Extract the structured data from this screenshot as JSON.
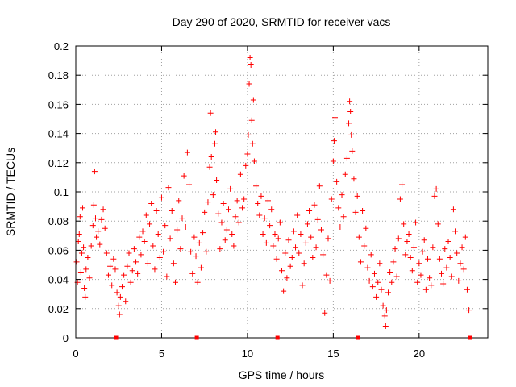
{
  "chart_data": {
    "type": "scatter",
    "title": "Day 290 of 2020, SRMTID for receiver vacs",
    "xlabel": "GPS time / hours",
    "ylabel": "SRMTID / TECUs",
    "xlim": [
      0,
      24
    ],
    "ylim": [
      0,
      0.2
    ],
    "x_ticks": [
      0,
      5,
      10,
      15,
      20
    ],
    "x_tick_labels": [
      "0",
      "5",
      "10",
      "15",
      "20"
    ],
    "y_ticks": [
      0,
      0.02,
      0.04,
      0.06,
      0.08,
      0.1,
      0.12,
      0.14,
      0.16,
      0.18,
      0.2
    ],
    "y_tick_labels": [
      "0",
      "0.02",
      "0.04",
      "0.06",
      "0.08",
      "0.1",
      "0.12",
      "0.14",
      "0.16",
      "0.18",
      "0.2"
    ],
    "grid": true,
    "marker": "+",
    "color": "#ff0000",
    "series": [
      {
        "name": "SRMTID",
        "points": [
          [
            0.05,
            0.052
          ],
          [
            0.1,
            0.038
          ],
          [
            0.15,
            0.066
          ],
          [
            0.2,
            0.071
          ],
          [
            0.25,
            0.083
          ],
          [
            0.3,
            0.045
          ],
          [
            0.35,
            0.058
          ],
          [
            0.4,
            0.089
          ],
          [
            0.45,
            0.062
          ],
          [
            0.5,
            0.034
          ],
          [
            0.55,
            0.028
          ],
          [
            0.6,
            0.047
          ],
          [
            0.7,
            0.055
          ],
          [
            0.8,
            0.041
          ],
          [
            0.9,
            0.063
          ],
          [
            1.0,
            0.077
          ],
          [
            1.05,
            0.091
          ],
          [
            1.1,
            0.114
          ],
          [
            1.15,
            0.082
          ],
          [
            1.2,
            0.069
          ],
          [
            1.3,
            0.073
          ],
          [
            1.4,
            0.064
          ],
          [
            1.5,
            0.081
          ],
          [
            1.6,
            0.088
          ],
          [
            1.7,
            0.075
          ],
          [
            1.8,
            0.058
          ],
          [
            1.9,
            0.043
          ],
          [
            2.0,
            0.049
          ],
          [
            2.1,
            0.036
          ],
          [
            2.2,
            0.054
          ],
          [
            2.3,
            0.047
          ],
          [
            2.4,
            0.031
          ],
          [
            2.5,
            0.022
          ],
          [
            2.55,
            0.016
          ],
          [
            2.6,
            0.028
          ],
          [
            2.7,
            0.035
          ],
          [
            2.8,
            0.043
          ],
          [
            2.9,
            0.025
          ],
          [
            3.0,
            0.049
          ],
          [
            3.1,
            0.058
          ],
          [
            3.2,
            0.038
          ],
          [
            3.3,
            0.046
          ],
          [
            3.4,
            0.061
          ],
          [
            3.5,
            0.052
          ],
          [
            3.6,
            0.044
          ],
          [
            3.7,
            0.069
          ],
          [
            3.8,
            0.057
          ],
          [
            3.9,
            0.073
          ],
          [
            4.0,
            0.066
          ],
          [
            4.1,
            0.084
          ],
          [
            4.2,
            0.051
          ],
          [
            4.3,
            0.078
          ],
          [
            4.4,
            0.092
          ],
          [
            4.5,
            0.063
          ],
          [
            4.6,
            0.047
          ],
          [
            4.7,
            0.087
          ],
          [
            4.8,
            0.071
          ],
          [
            4.9,
            0.055
          ],
          [
            5.0,
            0.096
          ],
          [
            5.1,
            0.059
          ],
          [
            5.2,
            0.077
          ],
          [
            5.3,
            0.042
          ],
          [
            5.4,
            0.103
          ],
          [
            5.5,
            0.068
          ],
          [
            5.6,
            0.087
          ],
          [
            5.7,
            0.051
          ],
          [
            5.8,
            0.038
          ],
          [
            5.9,
            0.074
          ],
          [
            6.0,
            0.094
          ],
          [
            6.1,
            0.061
          ],
          [
            6.2,
            0.082
          ],
          [
            6.3,
            0.111
          ],
          [
            6.4,
            0.076
          ],
          [
            6.5,
            0.127
          ],
          [
            6.6,
            0.105
          ],
          [
            6.7,
            0.059
          ],
          [
            6.8,
            0.044
          ],
          [
            6.9,
            0.069
          ],
          [
            7.0,
            0.056
          ],
          [
            7.1,
            0.038
          ],
          [
            7.2,
            0.065
          ],
          [
            7.3,
            0.048
          ],
          [
            7.4,
            0.072
          ],
          [
            7.5,
            0.086
          ],
          [
            7.6,
            0.059
          ],
          [
            7.7,
            0.093
          ],
          [
            7.8,
            0.117
          ],
          [
            7.85,
            0.154
          ],
          [
            7.9,
            0.124
          ],
          [
            8.0,
            0.098
          ],
          [
            8.1,
            0.133
          ],
          [
            8.15,
            0.141
          ],
          [
            8.2,
            0.108
          ],
          [
            8.3,
            0.085
          ],
          [
            8.4,
            0.061
          ],
          [
            8.5,
            0.079
          ],
          [
            8.6,
            0.092
          ],
          [
            8.7,
            0.067
          ],
          [
            8.8,
            0.074
          ],
          [
            8.9,
            0.088
          ],
          [
            9.0,
            0.102
          ],
          [
            9.1,
            0.071
          ],
          [
            9.2,
            0.063
          ],
          [
            9.3,
            0.083
          ],
          [
            9.4,
            0.094
          ],
          [
            9.5,
            0.079
          ],
          [
            9.6,
            0.112
          ],
          [
            9.7,
            0.089
          ],
          [
            9.8,
            0.095
          ],
          [
            9.9,
            0.118
          ],
          [
            10.0,
            0.126
          ],
          [
            10.05,
            0.139
          ],
          [
            10.1,
            0.174
          ],
          [
            10.15,
            0.192
          ],
          [
            10.2,
            0.187
          ],
          [
            10.25,
            0.149
          ],
          [
            10.3,
            0.133
          ],
          [
            10.35,
            0.163
          ],
          [
            10.4,
            0.121
          ],
          [
            10.5,
            0.104
          ],
          [
            10.6,
            0.092
          ],
          [
            10.7,
            0.084
          ],
          [
            10.8,
            0.097
          ],
          [
            10.9,
            0.071
          ],
          [
            11.0,
            0.082
          ],
          [
            11.1,
            0.065
          ],
          [
            11.2,
            0.094
          ],
          [
            11.3,
            0.077
          ],
          [
            11.4,
            0.088
          ],
          [
            11.5,
            0.063
          ],
          [
            11.6,
            0.071
          ],
          [
            11.7,
            0.054
          ],
          [
            11.8,
            0.068
          ],
          [
            11.9,
            0.079
          ],
          [
            12.0,
            0.046
          ],
          [
            12.1,
            0.032
          ],
          [
            12.2,
            0.058
          ],
          [
            12.3,
            0.041
          ],
          [
            12.4,
            0.067
          ],
          [
            12.5,
            0.049
          ],
          [
            12.6,
            0.055
          ],
          [
            12.7,
            0.073
          ],
          [
            12.8,
            0.062
          ],
          [
            12.9,
            0.084
          ],
          [
            13.0,
            0.058
          ],
          [
            13.1,
            0.071
          ],
          [
            13.2,
            0.036
          ],
          [
            13.3,
            0.051
          ],
          [
            13.4,
            0.065
          ],
          [
            13.5,
            0.078
          ],
          [
            13.6,
            0.087
          ],
          [
            13.7,
            0.069
          ],
          [
            13.8,
            0.055
          ],
          [
            13.9,
            0.091
          ],
          [
            14.0,
            0.062
          ],
          [
            14.1,
            0.081
          ],
          [
            14.2,
            0.104
          ],
          [
            14.3,
            0.074
          ],
          [
            14.4,
            0.057
          ],
          [
            14.5,
            0.017
          ],
          [
            14.6,
            0.043
          ],
          [
            14.7,
            0.068
          ],
          [
            14.8,
            0.039
          ],
          [
            14.9,
            0.095
          ],
          [
            15.0,
            0.121
          ],
          [
            15.05,
            0.135
          ],
          [
            15.1,
            0.151
          ],
          [
            15.2,
            0.107
          ],
          [
            15.3,
            0.089
          ],
          [
            15.4,
            0.076
          ],
          [
            15.5,
            0.098
          ],
          [
            15.6,
            0.083
          ],
          [
            15.7,
            0.112
          ],
          [
            15.8,
            0.123
          ],
          [
            15.9,
            0.147
          ],
          [
            15.95,
            0.162
          ],
          [
            16.0,
            0.155
          ],
          [
            16.05,
            0.139
          ],
          [
            16.1,
            0.128
          ],
          [
            16.2,
            0.109
          ],
          [
            16.3,
            0.086
          ],
          [
            16.4,
            0.097
          ],
          [
            16.5,
            0.069
          ],
          [
            16.6,
            0.052
          ],
          [
            16.7,
            0.087
          ],
          [
            16.8,
            0.063
          ],
          [
            16.9,
            0.075
          ],
          [
            17.0,
            0.048
          ],
          [
            17.1,
            0.039
          ],
          [
            17.2,
            0.057
          ],
          [
            17.3,
            0.035
          ],
          [
            17.4,
            0.044
          ],
          [
            17.5,
            0.028
          ],
          [
            17.6,
            0.038
          ],
          [
            17.7,
            0.051
          ],
          [
            17.8,
            0.033
          ],
          [
            17.9,
            0.022
          ],
          [
            18.0,
            0.015
          ],
          [
            18.05,
            0.008
          ],
          [
            18.1,
            0.019
          ],
          [
            18.2,
            0.031
          ],
          [
            18.3,
            0.045
          ],
          [
            18.4,
            0.038
          ],
          [
            18.5,
            0.052
          ],
          [
            18.6,
            0.061
          ],
          [
            18.7,
            0.042
          ],
          [
            18.8,
            0.068
          ],
          [
            18.9,
            0.095
          ],
          [
            19.0,
            0.105
          ],
          [
            19.1,
            0.078
          ],
          [
            19.2,
            0.057
          ],
          [
            19.3,
            0.066
          ],
          [
            19.4,
            0.071
          ],
          [
            19.5,
            0.055
          ],
          [
            19.6,
            0.046
          ],
          [
            19.7,
            0.062
          ],
          [
            19.8,
            0.079
          ],
          [
            19.9,
            0.038
          ],
          [
            20.0,
            0.051
          ],
          [
            20.1,
            0.043
          ],
          [
            20.2,
            0.059
          ],
          [
            20.3,
            0.067
          ],
          [
            20.4,
            0.033
          ],
          [
            20.5,
            0.054
          ],
          [
            20.6,
            0.041
          ],
          [
            20.7,
            0.036
          ],
          [
            20.8,
            0.062
          ],
          [
            20.9,
            0.097
          ],
          [
            21.0,
            0.102
          ],
          [
            21.1,
            0.078
          ],
          [
            21.2,
            0.054
          ],
          [
            21.3,
            0.044
          ],
          [
            21.4,
            0.037
          ],
          [
            21.5,
            0.061
          ],
          [
            21.6,
            0.048
          ],
          [
            21.7,
            0.066
          ],
          [
            21.8,
            0.055
          ],
          [
            21.9,
            0.042
          ],
          [
            22.0,
            0.088
          ],
          [
            22.1,
            0.073
          ],
          [
            22.2,
            0.058
          ],
          [
            22.3,
            0.039
          ],
          [
            22.4,
            0.051
          ],
          [
            22.5,
            0.062
          ],
          [
            22.6,
            0.047
          ],
          [
            22.7,
            0.069
          ],
          [
            22.8,
            0.033
          ],
          [
            22.9,
            0.019
          ]
        ]
      }
    ],
    "x_axis_markers": [
      2.35,
      7.05,
      11.75,
      16.45,
      22.95
    ]
  }
}
